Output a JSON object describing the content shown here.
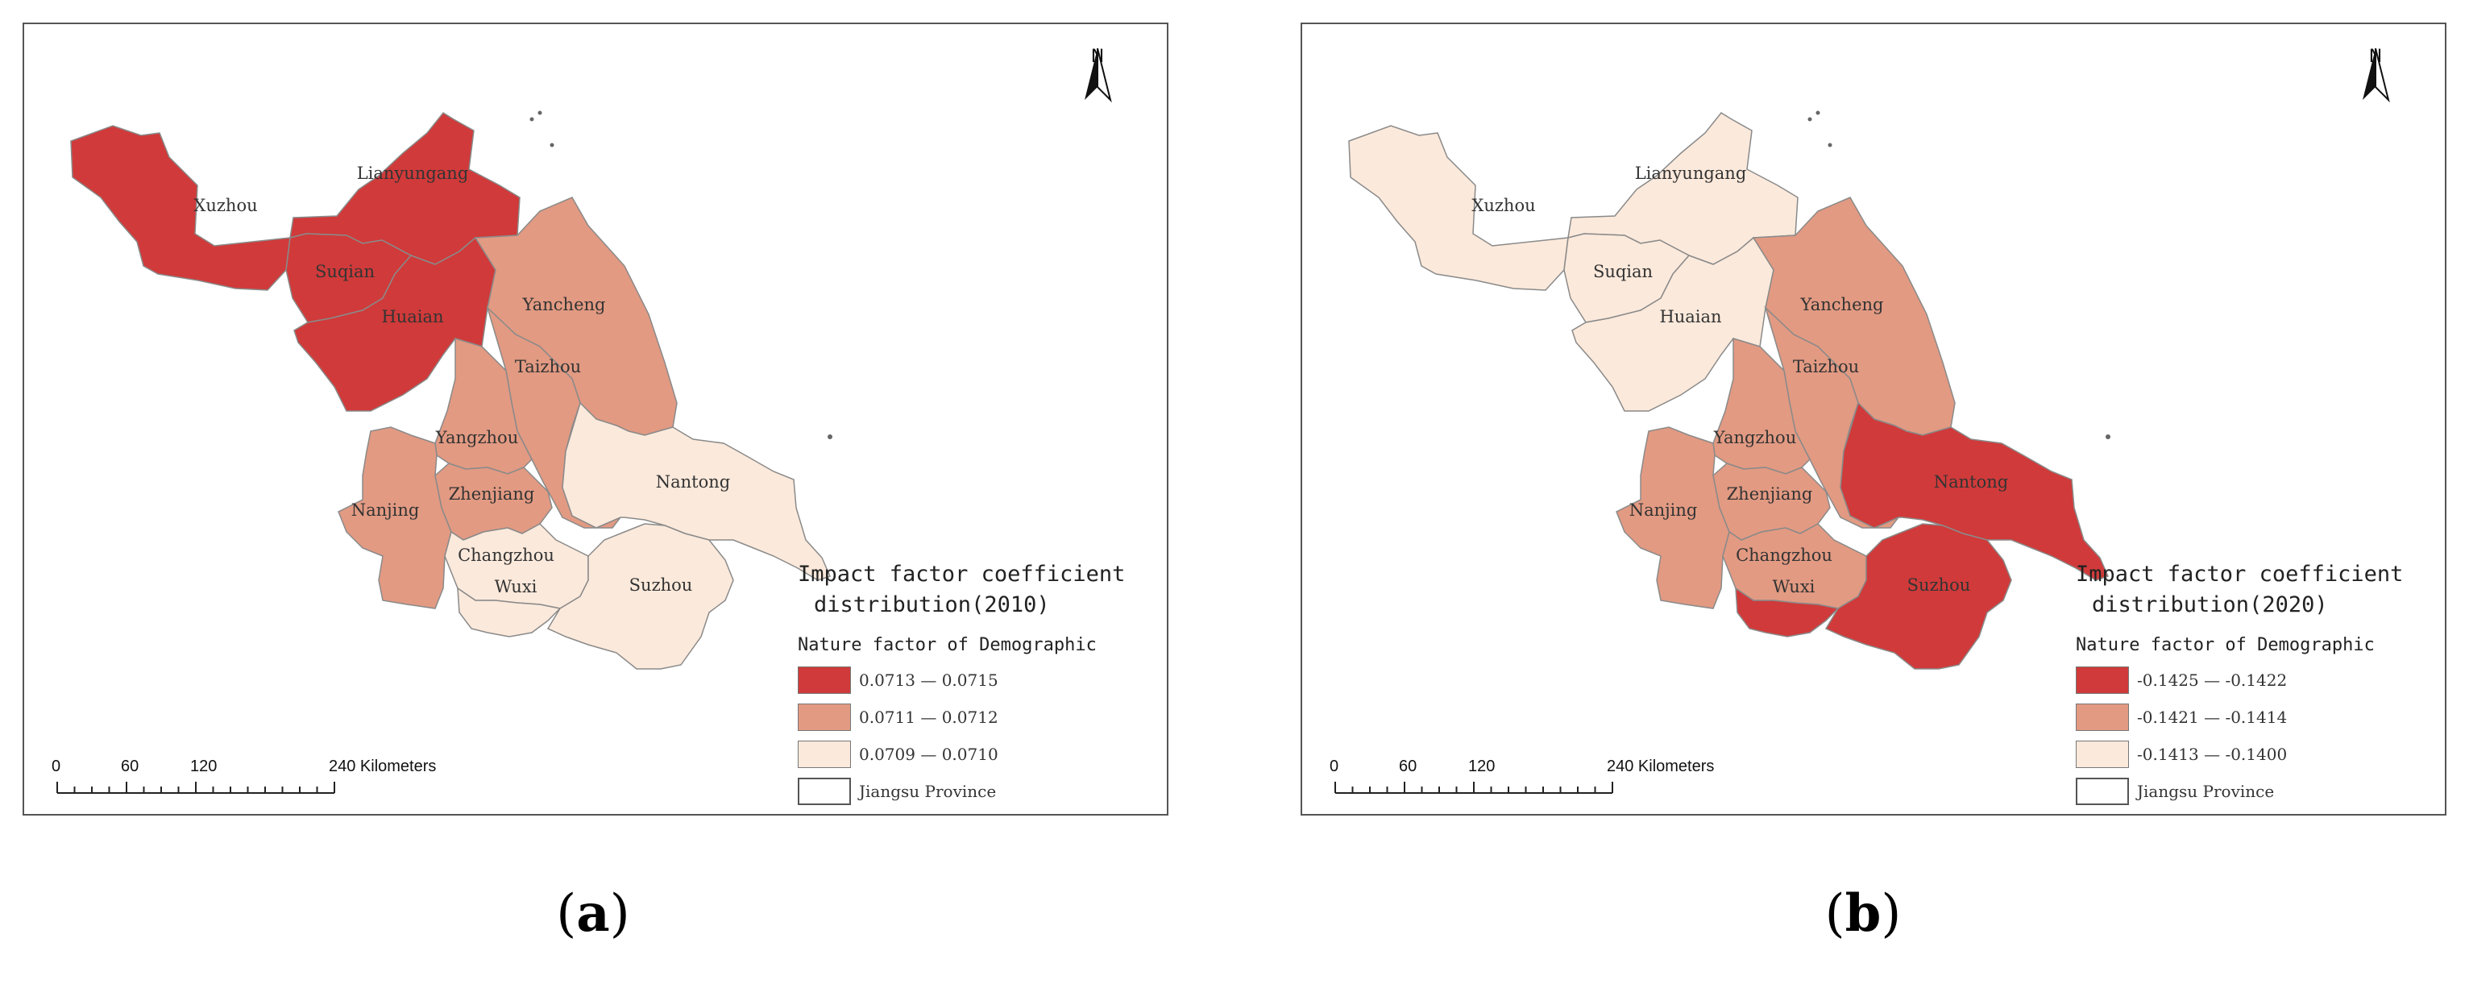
{
  "panels": [
    {
      "id": "a",
      "caption_letter": "a",
      "title_line1": "Impact factor coefficient",
      "title_line2": "distribution(2010)",
      "legend_subtitle": "Nature factor of Demographic",
      "north_label": "N",
      "legend": [
        {
          "label": "0.0713 — 0.0715",
          "color": "#d03a3a"
        },
        {
          "label": "0.0711 — 0.0712",
          "color": "#e29a82"
        },
        {
          "label": "0.0709 — 0.0710",
          "color": "#fbe9db"
        },
        {
          "label": "Jiangsu Province",
          "color": "#ffffff"
        }
      ],
      "cities": [
        {
          "name": "Xuzhou",
          "class": 1
        },
        {
          "name": "Lianyungang",
          "class": 1
        },
        {
          "name": "Suqian",
          "class": 1
        },
        {
          "name": "Huaian",
          "class": 1
        },
        {
          "name": "Yancheng",
          "class": 2
        },
        {
          "name": "Taizhou",
          "class": 2
        },
        {
          "name": "Yangzhou",
          "class": 2
        },
        {
          "name": "Nanjing",
          "class": 2
        },
        {
          "name": "Zhenjiang",
          "class": 2
        },
        {
          "name": "Nantong",
          "class": 3
        },
        {
          "name": "Changzhou",
          "class": 3
        },
        {
          "name": "Wuxi",
          "class": 3
        },
        {
          "name": "Suzhou",
          "class": 3
        }
      ],
      "scale": {
        "ticks": [
          "0",
          "60",
          "120",
          "240 Kilometers"
        ]
      }
    },
    {
      "id": "b",
      "caption_letter": "b",
      "title_line1": "Impact factor coefficient",
      "title_line2": "distribution(2020)",
      "legend_subtitle": "Nature factor of Demographic",
      "north_label": "N",
      "legend": [
        {
          "label": "-0.1425 — -0.1422",
          "color": "#d03a3a"
        },
        {
          "label": "-0.1421 — -0.1414",
          "color": "#e29a82"
        },
        {
          "label": "-0.1413 — -0.1400",
          "color": "#fbe9db"
        },
        {
          "label": "Jiangsu Province",
          "color": "#ffffff"
        }
      ],
      "cities": [
        {
          "name": "Xuzhou",
          "class": 3
        },
        {
          "name": "Lianyungang",
          "class": 3
        },
        {
          "name": "Suqian",
          "class": 3
        },
        {
          "name": "Huaian",
          "class": 3
        },
        {
          "name": "Yancheng",
          "class": 2
        },
        {
          "name": "Taizhou",
          "class": 2
        },
        {
          "name": "Yangzhou",
          "class": 2
        },
        {
          "name": "Nanjing",
          "class": 2
        },
        {
          "name": "Zhenjiang",
          "class": 2
        },
        {
          "name": "Changzhou",
          "class": 2
        },
        {
          "name": "Nantong",
          "class": 1
        },
        {
          "name": "Wuxi",
          "class": 1
        },
        {
          "name": "Suzhou",
          "class": 1
        }
      ],
      "scale": {
        "ticks": [
          "0",
          "60",
          "120",
          "240 Kilometers"
        ]
      }
    }
  ]
}
